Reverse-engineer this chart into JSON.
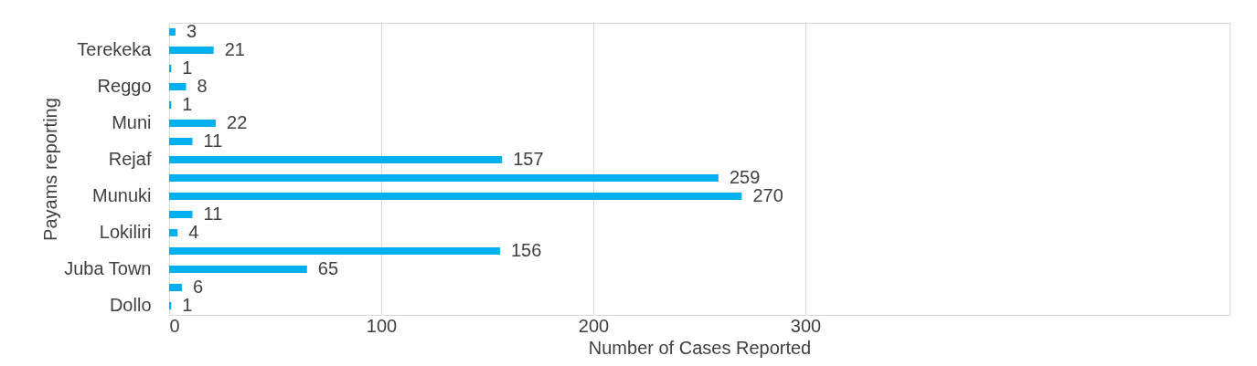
{
  "chart_data": {
    "type": "bar",
    "orientation": "horizontal",
    "categories": [
      null,
      "Terekeka",
      null,
      "Reggo",
      null,
      "Muni",
      null,
      "Rejaf",
      null,
      "Munuki",
      null,
      "Lokiliri",
      null,
      "Juba Town",
      null,
      "Dollo"
    ],
    "values": [
      3,
      21,
      1,
      8,
      1,
      22,
      11,
      157,
      259,
      270,
      11,
      4,
      156,
      65,
      6,
      1
    ],
    "color": "#00b0f0",
    "xlabel": "Number of Cases  Reported",
    "ylabel": "Payams reporting",
    "xlim": [
      0,
      500
    ],
    "xticks": [
      0,
      100,
      200,
      300
    ],
    "grid": "x",
    "data_labels": true
  }
}
